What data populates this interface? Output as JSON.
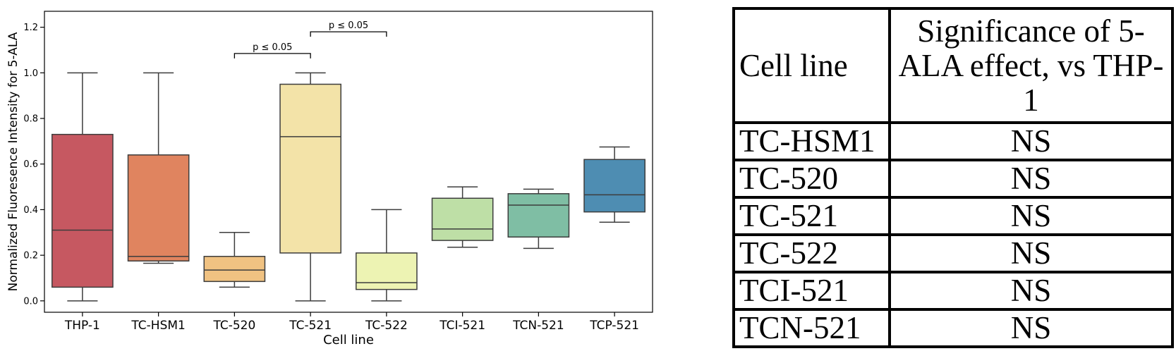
{
  "chart_data": {
    "type": "box",
    "ylabel": "Normalized Fluoresence Intensity for 5-ALA",
    "xlabel": "Cell line",
    "ylim": [
      -0.05,
      1.27
    ],
    "yticks": [
      "0.0",
      "0.2",
      "0.4",
      "0.6",
      "0.8",
      "1.0",
      "1.2"
    ],
    "grid": false,
    "categories": [
      "THP-1",
      "TC-HSM1",
      "TC-520",
      "TC-521",
      "TC-522",
      "TCI-521",
      "TCN-521",
      "TCP-521"
    ],
    "boxes": [
      {
        "label": "THP-1",
        "whisker_low": 0.0,
        "q1": 0.06,
        "median": 0.31,
        "q3": 0.73,
        "whisker_high": 1.0,
        "color": "#c65861"
      },
      {
        "label": "TC-HSM1",
        "whisker_low": 0.165,
        "q1": 0.175,
        "median": 0.195,
        "q3": 0.64,
        "whisker_high": 1.0,
        "color": "#e0845f"
      },
      {
        "label": "TC-520",
        "whisker_low": 0.06,
        "q1": 0.085,
        "median": 0.135,
        "q3": 0.195,
        "whisker_high": 0.3,
        "color": "#f0c282"
      },
      {
        "label": "TC-521",
        "whisker_low": 0.0,
        "q1": 0.21,
        "median": 0.72,
        "q3": 0.95,
        "whisker_high": 1.0,
        "color": "#f3e3a8"
      },
      {
        "label": "TC-522",
        "whisker_low": 0.0,
        "q1": 0.05,
        "median": 0.08,
        "q3": 0.21,
        "whisker_high": 0.4,
        "color": "#edf3b3"
      },
      {
        "label": "TCI-521",
        "whisker_low": 0.235,
        "q1": 0.265,
        "median": 0.315,
        "q3": 0.45,
        "whisker_high": 0.5,
        "color": "#bedfa6"
      },
      {
        "label": "TCN-521",
        "whisker_low": 0.23,
        "q1": 0.28,
        "median": 0.42,
        "q3": 0.47,
        "whisker_high": 0.49,
        "color": "#7fbea4"
      },
      {
        "label": "TCP-521",
        "whisker_low": 0.345,
        "q1": 0.39,
        "median": 0.465,
        "q3": 0.62,
        "whisker_high": 0.675,
        "color": "#4e8db2"
      }
    ],
    "annotations": [
      {
        "from": "TC-520",
        "to": "TC-521",
        "y": 1.085,
        "text": "p ≤ 0.05"
      },
      {
        "from": "TC-521",
        "to": "TC-522",
        "y": 1.18,
        "text": "p ≤ 0.05"
      }
    ]
  },
  "table": {
    "headers": [
      "Cell line",
      "Significance of 5-ALA effect, vs THP-1"
    ],
    "rows": [
      [
        "TC-HSM1",
        "NS"
      ],
      [
        "TC-520",
        "NS"
      ],
      [
        "TC-521",
        "NS"
      ],
      [
        "TC-522",
        "NS"
      ],
      [
        "TCI-521",
        "NS"
      ],
      [
        "TCN-521",
        "NS"
      ]
    ]
  }
}
